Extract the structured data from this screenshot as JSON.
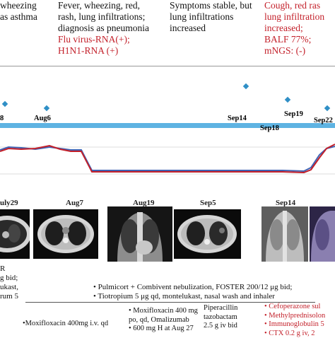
{
  "top_notes": {
    "col1": [
      "wheezing",
      "as asthma"
    ],
    "col2_black": [
      "Fever, wheezing, red,",
      "rash, lung infiltrations;",
      "diagnosis as pneumonia"
    ],
    "col2_red": [
      "Flu virus-RNA(+);",
      "H1N1-RNA (+)"
    ],
    "col3": [
      "Symptoms stable, but",
      "lung infiltrations",
      "increased"
    ],
    "col4_red": [
      "Cough, red ras",
      "lung infiltration",
      "increased;",
      "BALF 77%;",
      "mNGS: (-)"
    ]
  },
  "timeline_dates": [
    "8",
    "Aug6",
    "Sep14",
    "Sep18",
    "Sep19",
    "Sep22"
  ],
  "colors": {
    "timeline": "#5eb3e2",
    "diamond": "#2f8fc6",
    "red_line": "#c3202a",
    "blue_line": "#3f63b4",
    "note_red": "#c3202a"
  },
  "image_dates": [
    "uly29",
    "Aug7",
    "Aug19",
    "Sep5",
    "Sep14"
  ],
  "treatments": {
    "left": [
      "R",
      "g bid;",
      "ukast,",
      "rum 5"
    ],
    "nebul": [
      "• Pulmicort + Combivent nebulization, FOSTER 200/12 μg bid;",
      "• Tiotropium 5 μg qd, montelukast, nasal wash and inhaler"
    ],
    "moxi1": "•Moxifloxacin 400mg i.v. qd",
    "moxi2": [
      "• Moxifloxacin 400 mg",
      "po, qd, Omalizumab",
      "• 600 mg H at Aug 27"
    ],
    "pip": [
      "Piperacillin",
      "tazobactam",
      "2.5 g iv bid"
    ],
    "right_red": [
      "• Cefoperazone sul",
      "• Methylprednisolon",
      "• Immunoglobulin 5",
      "• CTX 0.2 g iv, 2"
    ]
  }
}
